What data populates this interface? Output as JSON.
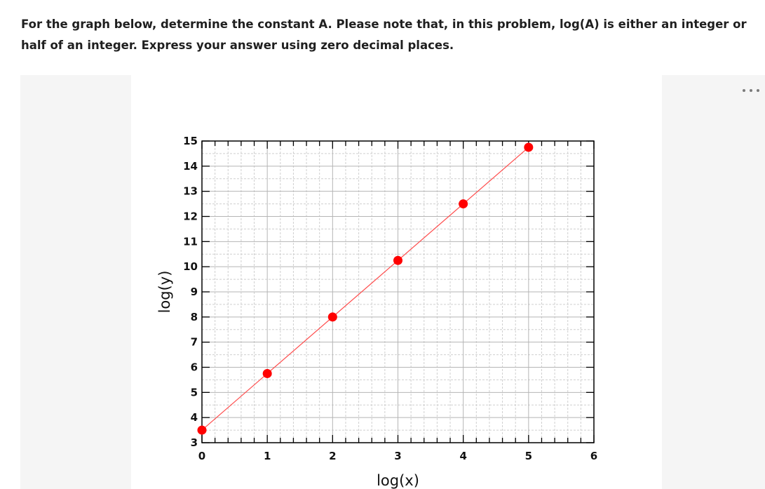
{
  "question": {
    "text": "For the graph below, determine the constant A. Please note that, in this problem, log(A) is either an integer or half of an integer. Express your answer using zero decimal places."
  },
  "colors": {
    "panel_background": "#f5f5f5",
    "grid_minor": "#cfcfcf",
    "grid_major": "#b5b5b5",
    "line": "#ff4d4d",
    "marker": "#ff0000"
  },
  "more_menu_icon": "ellipsis-icon",
  "chart_data": {
    "type": "scatter",
    "title": "",
    "xlabel": "log(x)",
    "ylabel": "log(y)",
    "xlim": [
      0,
      6
    ],
    "ylim": [
      3,
      15
    ],
    "x_ticks": [
      0,
      1,
      2,
      3,
      4,
      5,
      6
    ],
    "y_ticks": [
      3,
      4,
      5,
      6,
      7,
      8,
      9,
      10,
      11,
      12,
      13,
      14,
      15
    ],
    "grid": true,
    "series": [
      {
        "points": [
          {
            "x": 0,
            "y": 3.5
          },
          {
            "x": 1,
            "y": 5.75
          },
          {
            "x": 2,
            "y": 8.0
          },
          {
            "x": 3,
            "y": 10.25
          },
          {
            "x": 4,
            "y": 12.5
          },
          {
            "x": 5,
            "y": 14.75
          }
        ],
        "line": {
          "x0": 0,
          "y0": 3.5,
          "x1": 5,
          "y1": 14.75
        }
      }
    ]
  }
}
